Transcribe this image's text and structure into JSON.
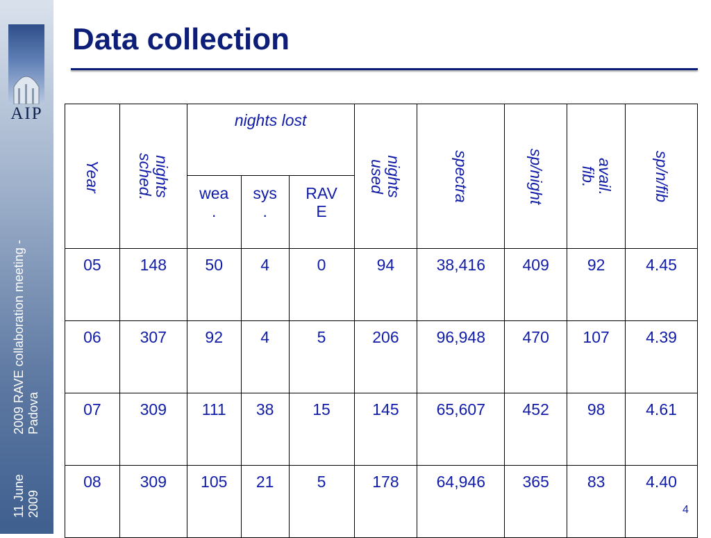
{
  "slide": {
    "title": "Data collection",
    "page_number": "4"
  },
  "sidebar": {
    "logo_text": "AIP",
    "event_line1": "2009 RAVE collaboration meeting -",
    "event_line2": "Padova",
    "date_line1": "11 June",
    "date_line2": "2009"
  },
  "table": {
    "headers": {
      "year": "Year",
      "nights_sched_1": "nights",
      "nights_sched_2": "sched.",
      "nights_lost": "nights lost",
      "wea_1": "wea",
      "wea_2": ".",
      "sys_1": "sys",
      "sys_2": ".",
      "rave_1": "RAV",
      "rave_2": "E",
      "nights_used_1": "nights",
      "nights_used_2": "used",
      "spectra": "spectra",
      "sp_night": "sp/night",
      "avail_1": "avail.",
      "avail_2": "fib.",
      "sp_n_fib": "sp/n/fib"
    },
    "rows": [
      [
        "05",
        "148",
        "50",
        "4",
        "0",
        "94",
        "38,416",
        "409",
        "92",
        "4.45"
      ],
      [
        "06",
        "307",
        "92",
        "4",
        "5",
        "206",
        "96,948",
        "470",
        "107",
        "4.39"
      ],
      [
        "07",
        "309",
        "111",
        "38",
        "15",
        "145",
        "65,607",
        "452",
        "98",
        "4.61"
      ],
      [
        "08",
        "309",
        "105",
        "21",
        "5",
        "178",
        "64,946",
        "365",
        "83",
        "4.40"
      ]
    ]
  }
}
